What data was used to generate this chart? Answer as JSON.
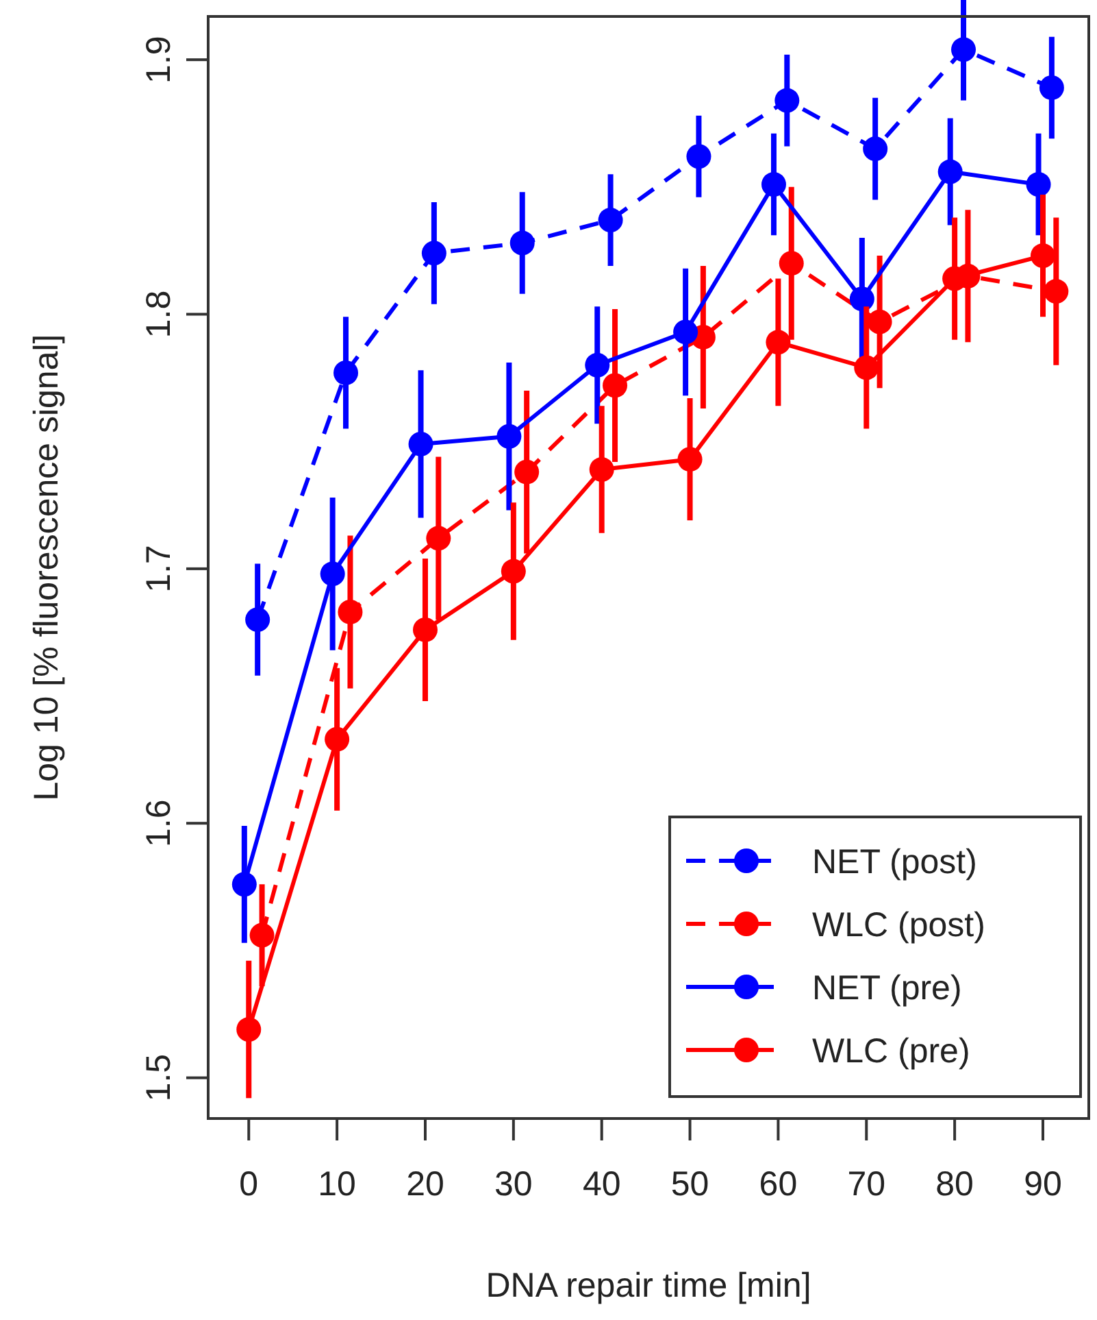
{
  "chart_data": {
    "type": "line",
    "xlabel": "DNA repair time [min]",
    "ylabel": "Log 10 [% fluorescence signal]",
    "xlim": [
      -4.6,
      95.2
    ],
    "ylim": [
      1.484,
      1.917
    ],
    "xticks": [
      0,
      10,
      20,
      30,
      40,
      50,
      60,
      70,
      80,
      90
    ],
    "yticks": [
      1.5,
      1.6,
      1.7,
      1.8,
      1.9
    ],
    "grid": false,
    "legend": "bottom right",
    "marker": "circle",
    "series": [
      {
        "name": "NET (post)",
        "color": "#0000ff",
        "line_style": "dashed",
        "x": [
          1,
          11,
          21,
          31,
          41,
          51,
          61,
          71,
          81,
          91
        ],
        "values": [
          1.68,
          1.777,
          1.824,
          1.828,
          1.837,
          1.862,
          1.884,
          1.865,
          1.904,
          1.889
        ],
        "errors": [
          0.022,
          0.022,
          0.02,
          0.02,
          0.018,
          0.016,
          0.018,
          0.02,
          0.02,
          0.02
        ]
      },
      {
        "name": "WLC (post)",
        "color": "#ff0000",
        "line_style": "dashed",
        "x": [
          1.5,
          11.5,
          21.5,
          31.5,
          41.5,
          51.5,
          61.5,
          71.5,
          81.5,
          91.5
        ],
        "values": [
          1.556,
          1.683,
          1.712,
          1.738,
          1.772,
          1.791,
          1.82,
          1.797,
          1.815,
          1.809
        ],
        "errors": [
          0.02,
          0.03,
          0.032,
          0.032,
          0.03,
          0.028,
          0.03,
          0.026,
          0.026,
          0.029
        ]
      },
      {
        "name": "NET (pre)",
        "color": "#0000ff",
        "line_style": "solid",
        "x": [
          -0.5,
          9.5,
          19.5,
          29.5,
          39.5,
          49.5,
          59.5,
          69.5,
          79.5,
          89.5
        ],
        "values": [
          1.576,
          1.698,
          1.749,
          1.752,
          1.78,
          1.793,
          1.851,
          1.806,
          1.856,
          1.851
        ],
        "errors": [
          0.023,
          0.03,
          0.029,
          0.029,
          0.023,
          0.025,
          0.02,
          0.024,
          0.021,
          0.02
        ]
      },
      {
        "name": "WLC (pre)",
        "color": "#ff0000",
        "line_style": "solid",
        "x": [
          0,
          10,
          20,
          30,
          40,
          50,
          60,
          70,
          80,
          90
        ],
        "values": [
          1.519,
          1.633,
          1.676,
          1.699,
          1.739,
          1.743,
          1.789,
          1.779,
          1.814,
          1.823
        ],
        "errors": [
          0.027,
          0.028,
          0.028,
          0.027,
          0.025,
          0.024,
          0.025,
          0.024,
          0.024,
          0.024
        ]
      }
    ]
  }
}
